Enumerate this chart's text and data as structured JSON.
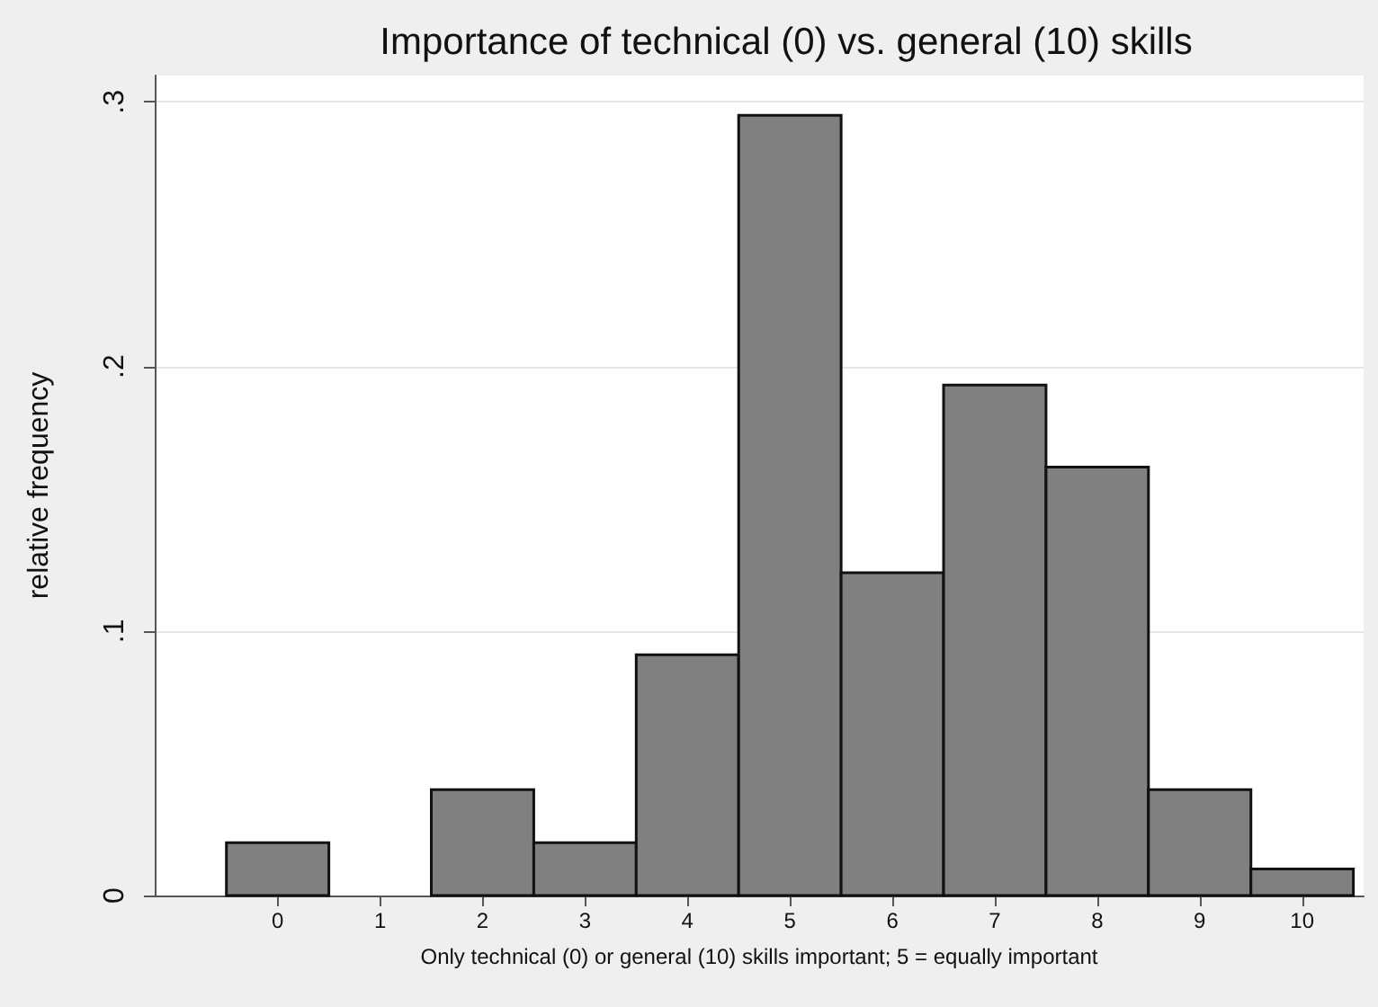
{
  "chart_data": {
    "type": "histogram",
    "title": "Importance of technical (0) vs. general (10) skills",
    "xlabel": "Only technical (0) or general (10) skills important; 5 = equally important",
    "ylabel": "relative frequency",
    "bins": [
      -0.5,
      0.5,
      1.5,
      2.5,
      3.5,
      4.5,
      5.5,
      6.5,
      7.5,
      8.5,
      9.5,
      10.5
    ],
    "values": [
      0.02,
      0,
      0.04,
      0.02,
      0.091,
      0.295,
      0.122,
      0.193,
      0.162,
      0.04,
      0.01
    ],
    "color": "#808080",
    "xlim": [
      -1.2,
      10.6
    ],
    "xticks": [
      0,
      1,
      2,
      3,
      4,
      5,
      6,
      7,
      8,
      9,
      10
    ],
    "ylim": [
      0,
      0.31
    ],
    "yticks": [
      {
        "value": 0,
        "label": "0"
      },
      {
        "value": 0.1,
        "label": ".1"
      },
      {
        "value": 0.2,
        "label": ".2"
      },
      {
        "value": 0.3,
        "label": ".3"
      }
    ],
    "grid": "y"
  }
}
